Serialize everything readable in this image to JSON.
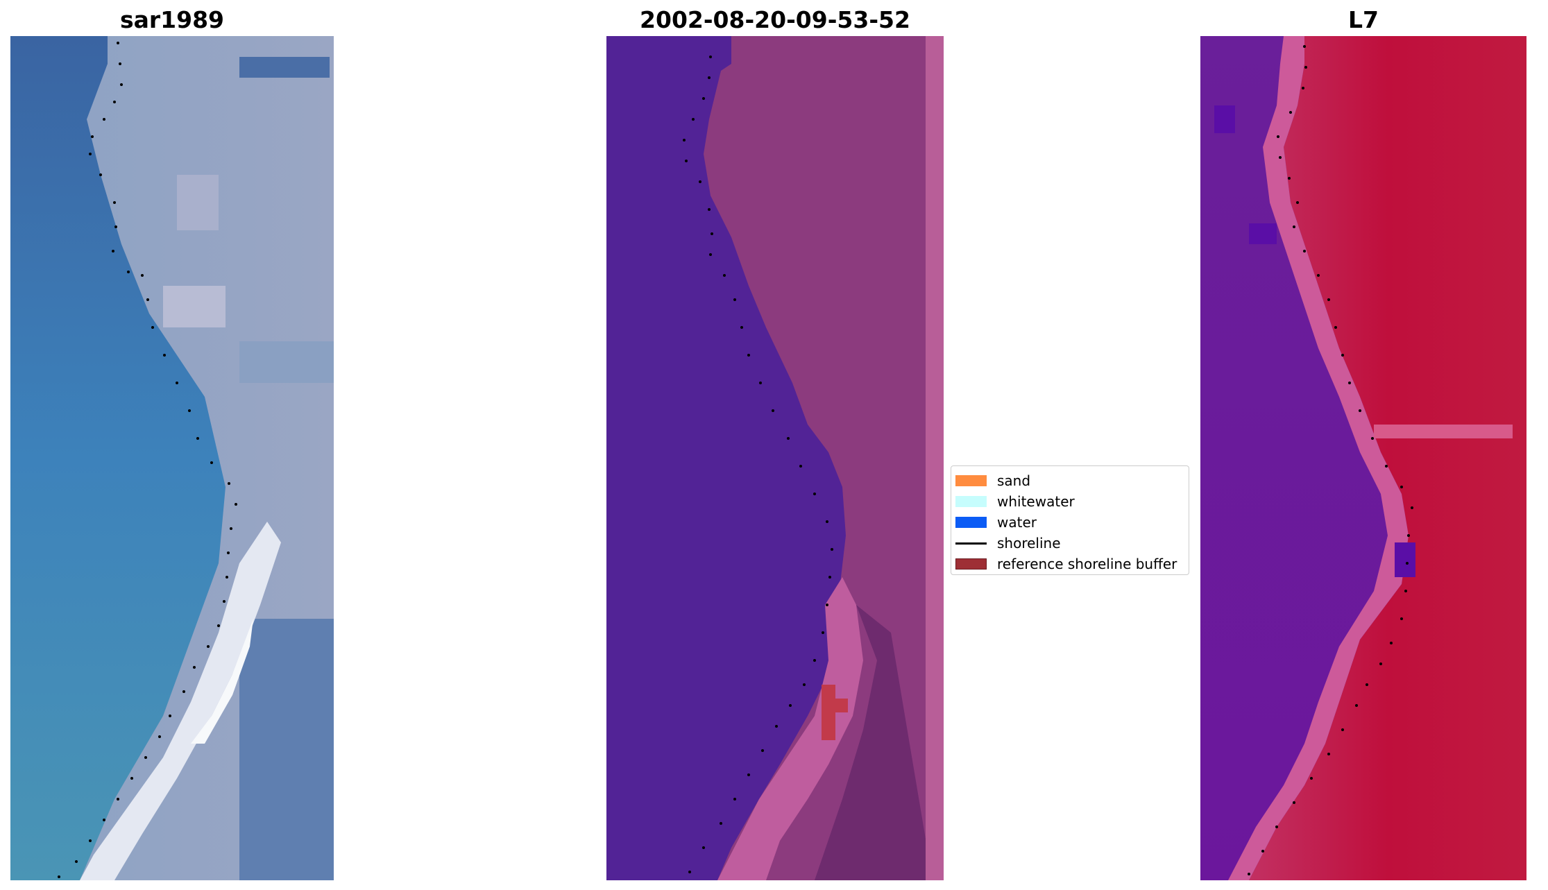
{
  "panels": [
    {
      "title": "sar1989",
      "image_desc": "rgb satellite image with shoreline dots"
    },
    {
      "title": "2002-08-20-09-53-52",
      "image_desc": "classified image with shoreline dots"
    },
    {
      "title": "L7",
      "image_desc": "index image with shoreline dots"
    }
  ],
  "legend": {
    "items": [
      {
        "label": "sand",
        "color": "#ff8c3f",
        "kind": "patch"
      },
      {
        "label": "whitewater",
        "color": "#c6fdfd",
        "kind": "patch"
      },
      {
        "label": "water",
        "color": "#0b5cf5",
        "kind": "patch"
      },
      {
        "label": "shoreline",
        "color": "#000000",
        "kind": "line"
      },
      {
        "label": "reference shoreline buffer",
        "color": "#9e2f35",
        "kind": "patch"
      }
    ]
  }
}
